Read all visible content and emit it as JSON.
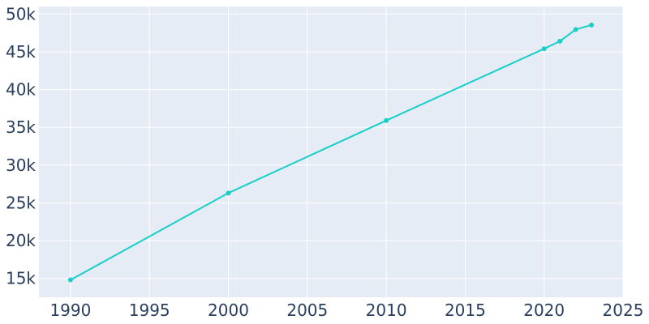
{
  "chart_data": {
    "type": "line",
    "title": "",
    "xlabel": "",
    "ylabel": "",
    "x": [
      1990,
      2000,
      2010,
      2020,
      2021,
      2022,
      2023
    ],
    "series": [
      {
        "values": [
          14800,
          26300,
          35900,
          45400,
          46400,
          47950,
          48550
        ]
      }
    ],
    "xlim": [
      1988,
      2025
    ],
    "ylim": [
      12500,
      51000
    ],
    "x_ticks": [
      1990,
      1995,
      2000,
      2005,
      2010,
      2015,
      2020,
      2025
    ],
    "x_tick_labels": [
      "1990",
      "1995",
      "2000",
      "2005",
      "2010",
      "2015",
      "2020",
      "2025"
    ],
    "y_ticks": [
      15000,
      20000,
      25000,
      30000,
      35000,
      40000,
      45000,
      50000
    ],
    "y_tick_labels": [
      "15k",
      "20k",
      "25k",
      "30k",
      "35k",
      "40k",
      "45k",
      "50k"
    ],
    "grid": true,
    "legend": "none",
    "colors": {
      "line": "#17cfc8",
      "plot_bg": "#e5ecf6",
      "grid": "#ffffff",
      "text": "#2a3f5f"
    }
  }
}
